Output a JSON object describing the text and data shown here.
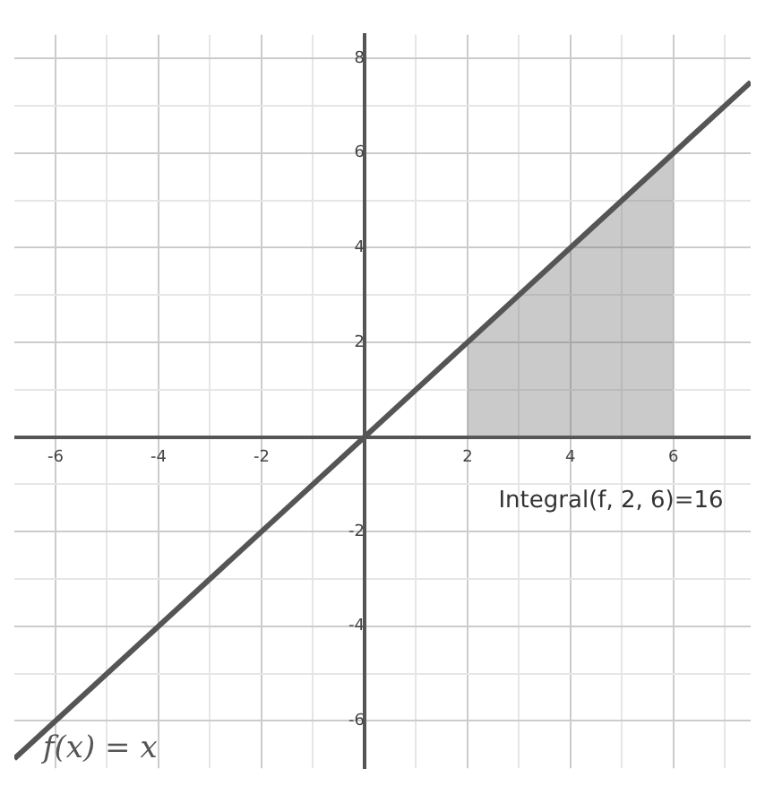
{
  "chart_data": {
    "type": "line",
    "xlim": [
      -6.8,
      7.5
    ],
    "ylim": [
      -7,
      8.5
    ],
    "xticks": [
      {
        "value": -6,
        "label": "-6"
      },
      {
        "value": -5,
        "label": null
      },
      {
        "value": -4,
        "label": "-4"
      },
      {
        "value": -3,
        "label": null
      },
      {
        "value": -2,
        "label": "-2"
      },
      {
        "value": -1,
        "label": null
      },
      {
        "value": 1,
        "label": null
      },
      {
        "value": 2,
        "label": "2"
      },
      {
        "value": 3,
        "label": null
      },
      {
        "value": 4,
        "label": "4"
      },
      {
        "value": 5,
        "label": null
      },
      {
        "value": 6,
        "label": "6"
      },
      {
        "value": 7,
        "label": null
      }
    ],
    "yticks": [
      {
        "value": -6,
        "label": "-6"
      },
      {
        "value": -5,
        "label": null
      },
      {
        "value": -4,
        "label": "-4"
      },
      {
        "value": -3,
        "label": null
      },
      {
        "value": -2,
        "label": "-2"
      },
      {
        "value": -1,
        "label": null
      },
      {
        "value": 1,
        "label": null
      },
      {
        "value": 2,
        "label": "2"
      },
      {
        "value": 3,
        "label": null
      },
      {
        "value": 4,
        "label": "4"
      },
      {
        "value": 5,
        "label": null
      },
      {
        "value": 6,
        "label": "6"
      },
      {
        "value": 7,
        "label": null
      },
      {
        "value": 8,
        "label": "8"
      }
    ],
    "grid": true,
    "legend": false,
    "marker": "none",
    "line_style": "solid",
    "series": [
      {
        "name": "f(x) = x",
        "color": "#555555",
        "x": [
          -6.8,
          7.5
        ],
        "values": [
          -6.8,
          7.5
        ]
      },
      {
        "type": "area",
        "color": "#666666",
        "x": [
          2,
          6
        ],
        "values": [
          2,
          6
        ]
      }
    ],
    "annotations": [
      "Integral(f, 2, 6)=16"
    ]
  }
}
